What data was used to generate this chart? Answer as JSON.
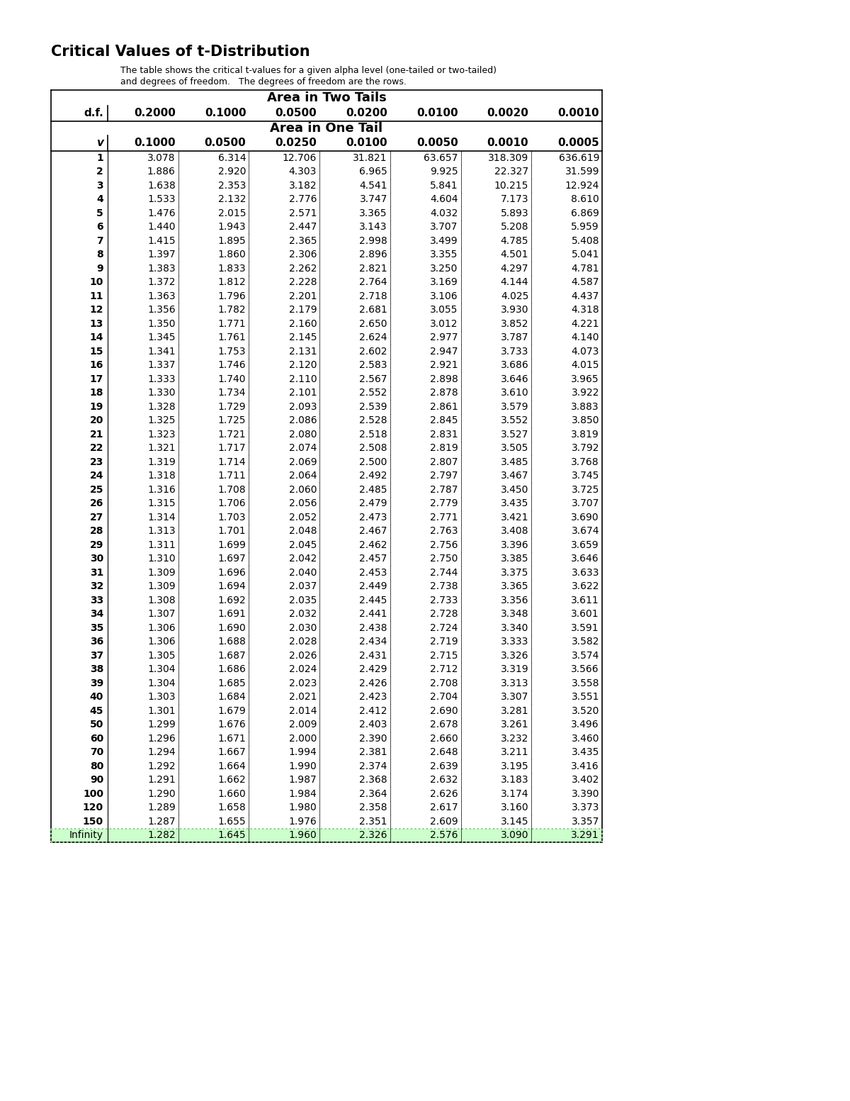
{
  "title": "Critical Values of t-Distribution",
  "subtitle_line1": "The table shows the critical t-values for a given alpha level (one-tailed or two-tailed)",
  "subtitle_line2": "and degrees of freedom.   The degrees of freedom are the rows.",
  "area_two_tails_label": "Area in Two Tails",
  "area_one_tail_label": "Area in One Tail",
  "col_header_two_tails": [
    "0.2000",
    "0.1000",
    "0.0500",
    "0.0200",
    "0.0100",
    "0.0020",
    "0.0010"
  ],
  "col_header_one_tail": [
    "0.1000",
    "0.0500",
    "0.0250",
    "0.0100",
    "0.0050",
    "0.0010",
    "0.0005"
  ],
  "df_label": "d.f.",
  "v_label": "v",
  "rows": [
    [
      "1",
      "3.078",
      "6.314",
      "12.706",
      "31.821",
      "63.657",
      "318.309",
      "636.619"
    ],
    [
      "2",
      "1.886",
      "2.920",
      "4.303",
      "6.965",
      "9.925",
      "22.327",
      "31.599"
    ],
    [
      "3",
      "1.638",
      "2.353",
      "3.182",
      "4.541",
      "5.841",
      "10.215",
      "12.924"
    ],
    [
      "4",
      "1.533",
      "2.132",
      "2.776",
      "3.747",
      "4.604",
      "7.173",
      "8.610"
    ],
    [
      "5",
      "1.476",
      "2.015",
      "2.571",
      "3.365",
      "4.032",
      "5.893",
      "6.869"
    ],
    [
      "6",
      "1.440",
      "1.943",
      "2.447",
      "3.143",
      "3.707",
      "5.208",
      "5.959"
    ],
    [
      "7",
      "1.415",
      "1.895",
      "2.365",
      "2.998",
      "3.499",
      "4.785",
      "5.408"
    ],
    [
      "8",
      "1.397",
      "1.860",
      "2.306",
      "2.896",
      "3.355",
      "4.501",
      "5.041"
    ],
    [
      "9",
      "1.383",
      "1.833",
      "2.262",
      "2.821",
      "3.250",
      "4.297",
      "4.781"
    ],
    [
      "10",
      "1.372",
      "1.812",
      "2.228",
      "2.764",
      "3.169",
      "4.144",
      "4.587"
    ],
    [
      "11",
      "1.363",
      "1.796",
      "2.201",
      "2.718",
      "3.106",
      "4.025",
      "4.437"
    ],
    [
      "12",
      "1.356",
      "1.782",
      "2.179",
      "2.681",
      "3.055",
      "3.930",
      "4.318"
    ],
    [
      "13",
      "1.350",
      "1.771",
      "2.160",
      "2.650",
      "3.012",
      "3.852",
      "4.221"
    ],
    [
      "14",
      "1.345",
      "1.761",
      "2.145",
      "2.624",
      "2.977",
      "3.787",
      "4.140"
    ],
    [
      "15",
      "1.341",
      "1.753",
      "2.131",
      "2.602",
      "2.947",
      "3.733",
      "4.073"
    ],
    [
      "16",
      "1.337",
      "1.746",
      "2.120",
      "2.583",
      "2.921",
      "3.686",
      "4.015"
    ],
    [
      "17",
      "1.333",
      "1.740",
      "2.110",
      "2.567",
      "2.898",
      "3.646",
      "3.965"
    ],
    [
      "18",
      "1.330",
      "1.734",
      "2.101",
      "2.552",
      "2.878",
      "3.610",
      "3.922"
    ],
    [
      "19",
      "1.328",
      "1.729",
      "2.093",
      "2.539",
      "2.861",
      "3.579",
      "3.883"
    ],
    [
      "20",
      "1.325",
      "1.725",
      "2.086",
      "2.528",
      "2.845",
      "3.552",
      "3.850"
    ],
    [
      "21",
      "1.323",
      "1.721",
      "2.080",
      "2.518",
      "2.831",
      "3.527",
      "3.819"
    ],
    [
      "22",
      "1.321",
      "1.717",
      "2.074",
      "2.508",
      "2.819",
      "3.505",
      "3.792"
    ],
    [
      "23",
      "1.319",
      "1.714",
      "2.069",
      "2.500",
      "2.807",
      "3.485",
      "3.768"
    ],
    [
      "24",
      "1.318",
      "1.711",
      "2.064",
      "2.492",
      "2.797",
      "3.467",
      "3.745"
    ],
    [
      "25",
      "1.316",
      "1.708",
      "2.060",
      "2.485",
      "2.787",
      "3.450",
      "3.725"
    ],
    [
      "26",
      "1.315",
      "1.706",
      "2.056",
      "2.479",
      "2.779",
      "3.435",
      "3.707"
    ],
    [
      "27",
      "1.314",
      "1.703",
      "2.052",
      "2.473",
      "2.771",
      "3.421",
      "3.690"
    ],
    [
      "28",
      "1.313",
      "1.701",
      "2.048",
      "2.467",
      "2.763",
      "3.408",
      "3.674"
    ],
    [
      "29",
      "1.311",
      "1.699",
      "2.045",
      "2.462",
      "2.756",
      "3.396",
      "3.659"
    ],
    [
      "30",
      "1.310",
      "1.697",
      "2.042",
      "2.457",
      "2.750",
      "3.385",
      "3.646"
    ],
    [
      "31",
      "1.309",
      "1.696",
      "2.040",
      "2.453",
      "2.744",
      "3.375",
      "3.633"
    ],
    [
      "32",
      "1.309",
      "1.694",
      "2.037",
      "2.449",
      "2.738",
      "3.365",
      "3.622"
    ],
    [
      "33",
      "1.308",
      "1.692",
      "2.035",
      "2.445",
      "2.733",
      "3.356",
      "3.611"
    ],
    [
      "34",
      "1.307",
      "1.691",
      "2.032",
      "2.441",
      "2.728",
      "3.348",
      "3.601"
    ],
    [
      "35",
      "1.306",
      "1.690",
      "2.030",
      "2.438",
      "2.724",
      "3.340",
      "3.591"
    ],
    [
      "36",
      "1.306",
      "1.688",
      "2.028",
      "2.434",
      "2.719",
      "3.333",
      "3.582"
    ],
    [
      "37",
      "1.305",
      "1.687",
      "2.026",
      "2.431",
      "2.715",
      "3.326",
      "3.574"
    ],
    [
      "38",
      "1.304",
      "1.686",
      "2.024",
      "2.429",
      "2.712",
      "3.319",
      "3.566"
    ],
    [
      "39",
      "1.304",
      "1.685",
      "2.023",
      "2.426",
      "2.708",
      "3.313",
      "3.558"
    ],
    [
      "40",
      "1.303",
      "1.684",
      "2.021",
      "2.423",
      "2.704",
      "3.307",
      "3.551"
    ],
    [
      "45",
      "1.301",
      "1.679",
      "2.014",
      "2.412",
      "2.690",
      "3.281",
      "3.520"
    ],
    [
      "50",
      "1.299",
      "1.676",
      "2.009",
      "2.403",
      "2.678",
      "3.261",
      "3.496"
    ],
    [
      "60",
      "1.296",
      "1.671",
      "2.000",
      "2.390",
      "2.660",
      "3.232",
      "3.460"
    ],
    [
      "70",
      "1.294",
      "1.667",
      "1.994",
      "2.381",
      "2.648",
      "3.211",
      "3.435"
    ],
    [
      "80",
      "1.292",
      "1.664",
      "1.990",
      "2.374",
      "2.639",
      "3.195",
      "3.416"
    ],
    [
      "90",
      "1.291",
      "1.662",
      "1.987",
      "2.368",
      "2.632",
      "3.183",
      "3.402"
    ],
    [
      "100",
      "1.290",
      "1.660",
      "1.984",
      "2.364",
      "2.626",
      "3.174",
      "3.390"
    ],
    [
      "120",
      "1.289",
      "1.658",
      "1.980",
      "2.358",
      "2.617",
      "3.160",
      "3.373"
    ],
    [
      "150",
      "1.287",
      "1.655",
      "1.976",
      "2.351",
      "2.609",
      "3.145",
      "3.357"
    ],
    [
      "Infinity",
      "1.282",
      "1.645",
      "1.960",
      "2.326",
      "2.576",
      "3.090",
      "3.291"
    ]
  ],
  "infinity_row_bg": "#ccffcc",
  "infinity_row_border": "#88cc88",
  "page_bg": "#ffffff"
}
